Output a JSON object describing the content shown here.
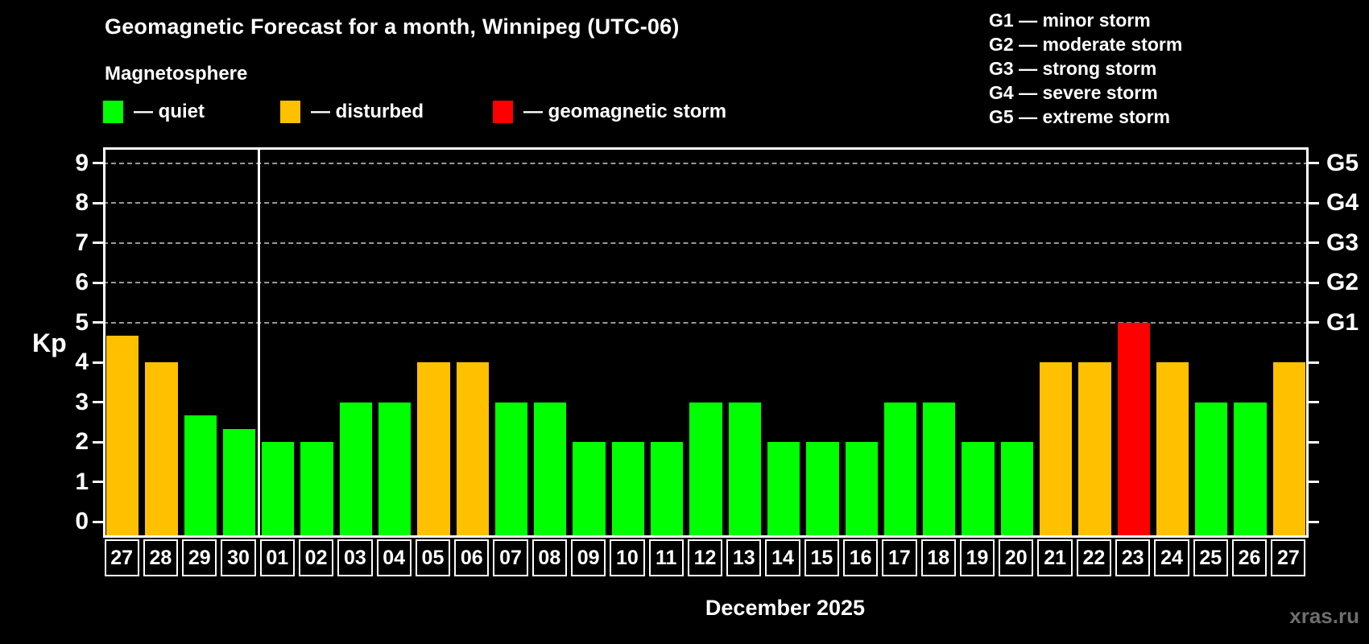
{
  "header": {
    "title": "Geomagnetic Forecast for a month, Winnipeg (UTC-06)"
  },
  "legend": {
    "title": "Magnetosphere",
    "items": [
      {
        "name": "quiet",
        "label": "— quiet",
        "color": "#00ff00"
      },
      {
        "name": "disturbed",
        "label": "— disturbed",
        "color": "#ffc000"
      },
      {
        "name": "geomagnetic-storm",
        "label": "— geomagnetic storm",
        "color": "#ff0000"
      }
    ]
  },
  "g_legend": [
    "G1 — minor storm",
    "G2 — moderate storm",
    "G3 — strong storm",
    "G4 — severe storm",
    "G5 — extreme storm"
  ],
  "watermark": "xras.ru",
  "chart_data": {
    "type": "bar",
    "title": "Geomagnetic Forecast for a month, Winnipeg (UTC-06)",
    "xlabel": "December 2025",
    "ylabel": "Kp",
    "ylim": [
      0,
      9
    ],
    "grid": "dashed horizontal gridlines at Kp 5,6,7,8,9",
    "legend_position": "top-left",
    "y_tick_labels": [
      "0",
      "1",
      "2",
      "3",
      "4",
      "5",
      "6",
      "7",
      "8",
      "9"
    ],
    "right_axis_ticks": [
      {
        "kp": 5,
        "label": "G1"
      },
      {
        "kp": 6,
        "label": "G2"
      },
      {
        "kp": 7,
        "label": "G3"
      },
      {
        "kp": 8,
        "label": "G4"
      },
      {
        "kp": 9,
        "label": "G5"
      }
    ],
    "categories": [
      "27",
      "28",
      "29",
      "30",
      "01",
      "02",
      "03",
      "04",
      "05",
      "06",
      "07",
      "08",
      "09",
      "10",
      "11",
      "12",
      "13",
      "14",
      "15",
      "16",
      "17",
      "18",
      "19",
      "20",
      "21",
      "22",
      "23",
      "24",
      "25",
      "26",
      "27"
    ],
    "values": [
      4.67,
      4,
      2.67,
      2.33,
      2,
      2,
      3,
      3,
      4,
      4,
      3,
      3,
      2,
      2,
      2,
      3,
      3,
      2,
      2,
      2,
      3,
      3,
      2,
      2,
      4,
      4,
      5,
      4,
      3,
      3,
      4
    ],
    "statuses": [
      "disturbed",
      "disturbed",
      "quiet",
      "quiet",
      "quiet",
      "quiet",
      "quiet",
      "quiet",
      "disturbed",
      "disturbed",
      "quiet",
      "quiet",
      "quiet",
      "quiet",
      "quiet",
      "quiet",
      "quiet",
      "quiet",
      "quiet",
      "quiet",
      "quiet",
      "quiet",
      "quiet",
      "quiet",
      "disturbed",
      "disturbed",
      "storm",
      "disturbed",
      "quiet",
      "quiet",
      "disturbed"
    ],
    "status_colors": {
      "quiet": "#00ff00",
      "disturbed": "#ffc000",
      "storm": "#ff0000"
    },
    "month_separator_before_index": 4
  }
}
